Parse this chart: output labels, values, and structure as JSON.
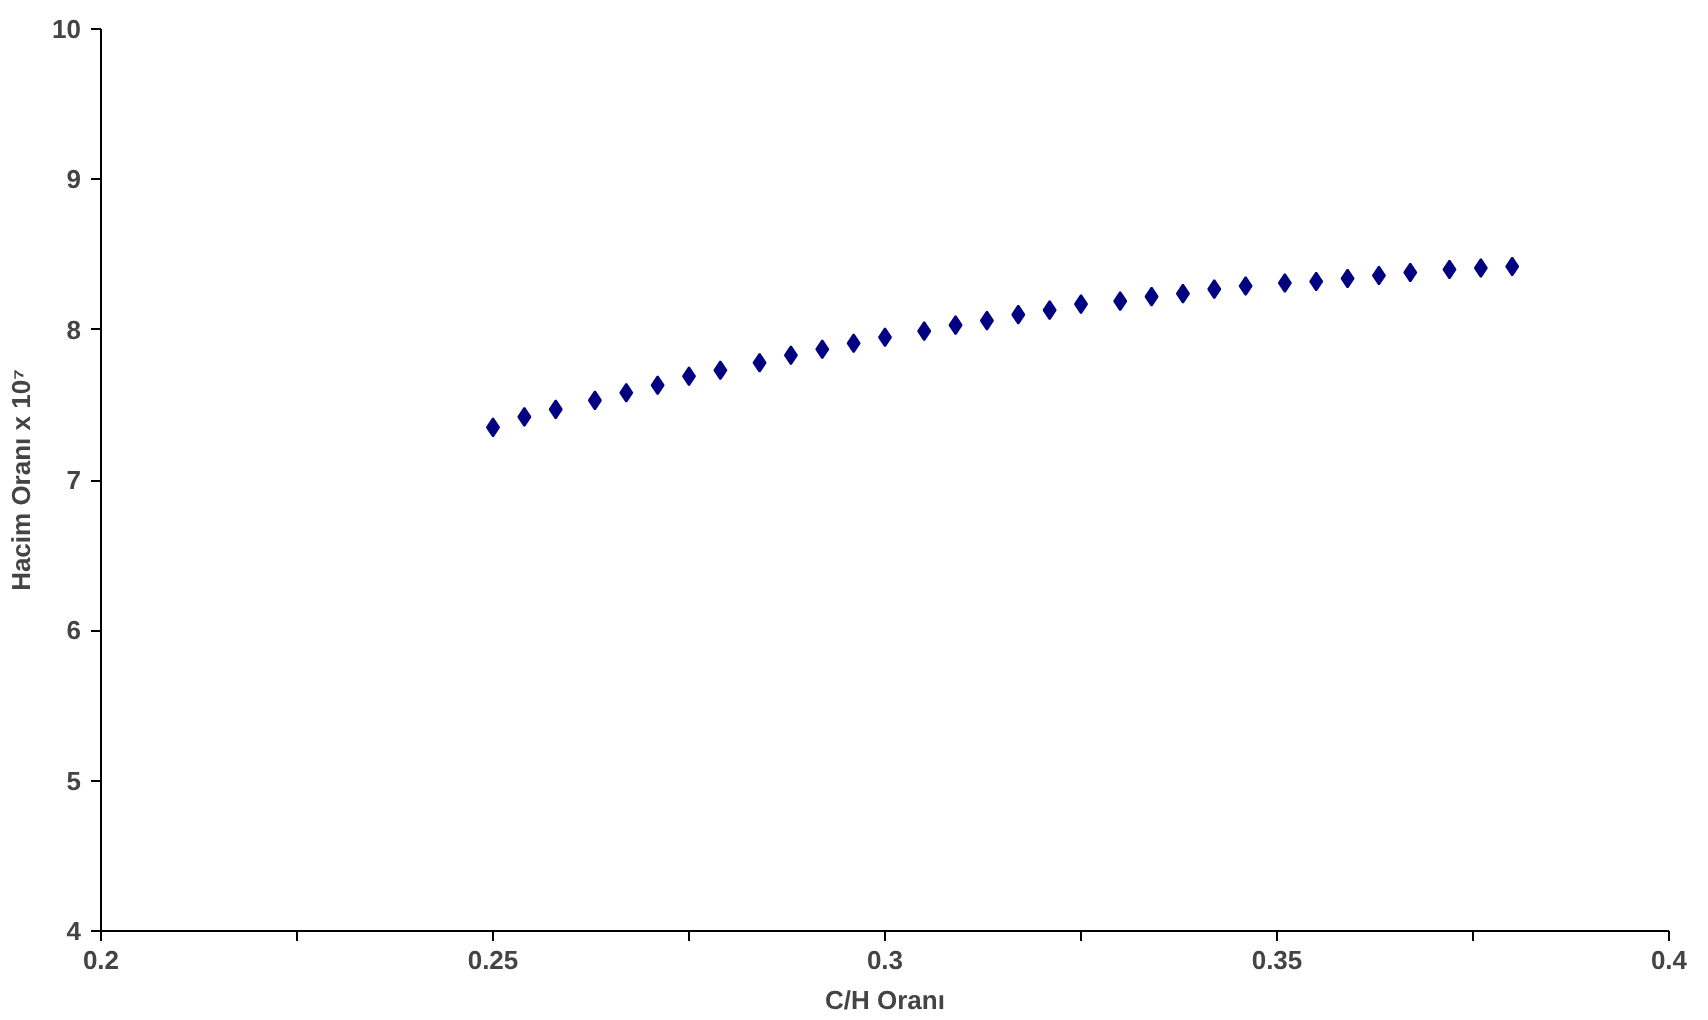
{
  "chart_data": {
    "type": "scatter",
    "xlabel": "C/H Oranı",
    "ylabel": "Hacim Oranı x 10⁷",
    "x": [
      0.25,
      0.254,
      0.258,
      0.263,
      0.267,
      0.271,
      0.275,
      0.279,
      0.284,
      0.288,
      0.292,
      0.296,
      0.3,
      0.305,
      0.309,
      0.313,
      0.317,
      0.321,
      0.325,
      0.33,
      0.334,
      0.338,
      0.342,
      0.346,
      0.351,
      0.355,
      0.359,
      0.363,
      0.367,
      0.372,
      0.376,
      0.38
    ],
    "series": [
      {
        "color": "#000080",
        "values": [
          7.35,
          7.42,
          7.47,
          7.53,
          7.58,
          7.63,
          7.69,
          7.73,
          7.78,
          7.83,
          7.87,
          7.91,
          7.95,
          7.99,
          8.03,
          8.06,
          8.1,
          8.13,
          8.17,
          8.19,
          8.22,
          8.24,
          8.27,
          8.29,
          8.31,
          8.32,
          8.34,
          8.36,
          8.38,
          8.4,
          8.41,
          8.42
        ]
      }
    ],
    "xlim": [
      0.2,
      0.4
    ],
    "ylim": [
      4,
      10
    ],
    "xticks": [
      0.2,
      {
        "value": 0.225,
        "label": null
      },
      0.25,
      {
        "value": 0.275,
        "label": null
      },
      0.3,
      {
        "value": 0.325,
        "label": null
      },
      0.35,
      {
        "value": 0.375,
        "label": null
      },
      0.4
    ],
    "yticks": [
      4,
      5,
      6,
      7,
      8,
      9,
      10
    ],
    "grid": false,
    "marker": "diamond"
  }
}
